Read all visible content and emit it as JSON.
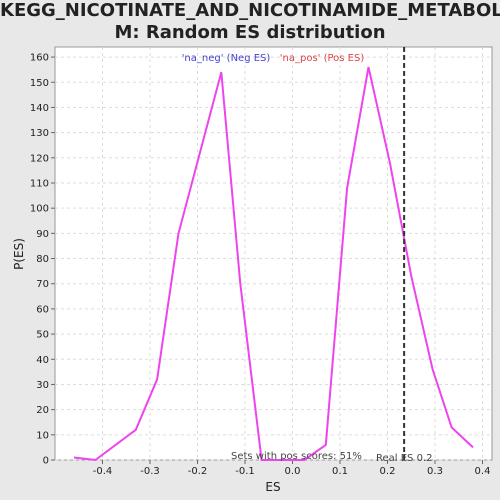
{
  "chart_data": {
    "type": "line",
    "title": "KEGG_NICOTINATE_AND_NICOTINAMIDE_METABOLISM: Random ES distribution",
    "title_lines": [
      "KEGG_NICOTINATE_AND_NICOTINAMIDE_METABOLIS",
      "M: Random ES distribution"
    ],
    "xlabel": "ES",
    "ylabel": "P(ES)",
    "xlim": [
      -0.5,
      0.42
    ],
    "ylim": [
      0,
      164
    ],
    "x_ticks": [
      -0.4,
      -0.3,
      -0.2,
      -0.1,
      0.0,
      0.1,
      0.2,
      0.3,
      0.4
    ],
    "x_tick_labels": [
      "-0.4",
      "-0.3",
      "-0.2",
      "-0.1",
      "0.0",
      "0.1",
      "0.2",
      "0.3",
      "0.4"
    ],
    "y_ticks": [
      0,
      10,
      20,
      30,
      40,
      50,
      60,
      70,
      80,
      90,
      100,
      110,
      120,
      130,
      140,
      150,
      160
    ],
    "y_tick_labels": [
      "0",
      "10",
      "20",
      "30",
      "40",
      "50",
      "60",
      "70",
      "80",
      "90",
      "100",
      "110",
      "120",
      "130",
      "140",
      "150",
      "160"
    ],
    "grid": true,
    "series": [
      {
        "color": "#ee44ee",
        "x": [
          -0.46,
          -0.415,
          -0.33,
          -0.285,
          -0.24,
          -0.15,
          -0.11,
          -0.065,
          -0.02,
          0.025,
          0.07,
          0.115,
          0.16,
          0.205,
          0.25,
          0.295,
          0.335,
          0.38
        ],
        "y": [
          1,
          0,
          12,
          32,
          90,
          154,
          70,
          0,
          0,
          0,
          6,
          108,
          156,
          118,
          73,
          36,
          13,
          5
        ]
      }
    ],
    "real_es": {
      "x": 0.235,
      "label": "Real ES 0.2",
      "color": "#333333"
    },
    "legend": [
      {
        "text": "'na_neg' (Neg ES)",
        "color": "#4444cc"
      },
      {
        "text": "'na_pos' (Pos ES)",
        "color": "#dd4444"
      }
    ],
    "legend_placement": "top-center",
    "annotation": "Sets with pos scores: 51%"
  }
}
